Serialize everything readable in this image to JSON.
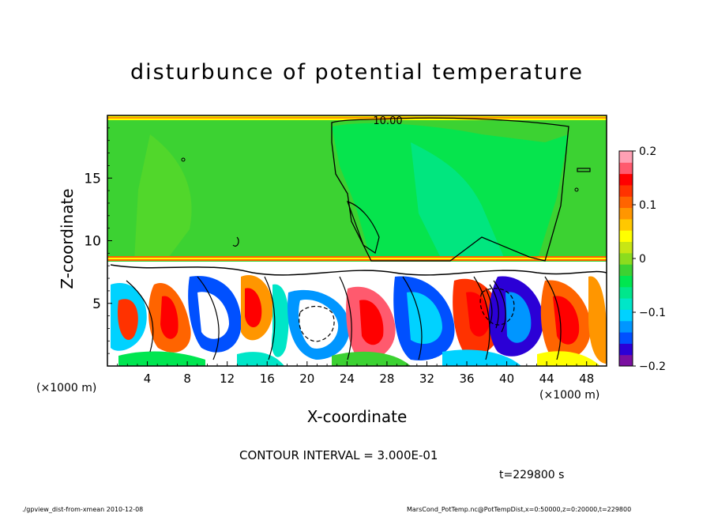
{
  "chart_data": {
    "type": "heatmap",
    "title": "disturbunce of potential temperature",
    "xlabel": "X-coordinate",
    "ylabel": "Z-coordinate",
    "x_unit": "(×1000 m)",
    "y_unit": "(×1000 m)",
    "xlim": [
      0,
      50
    ],
    "ylim": [
      0,
      20
    ],
    "x_ticks": [
      "4",
      "8",
      "12",
      "16",
      "20",
      "24",
      "28",
      "32",
      "36",
      "40",
      "44",
      "48"
    ],
    "y_ticks": [
      "5",
      "10",
      "15"
    ],
    "colorbar": {
      "range": [
        -0.2,
        0.2
      ],
      "tick_labels": [
        "0.2",
        "0.1",
        "0",
        "−0.1",
        "−0.2"
      ],
      "tick_values": [
        0.2,
        0.1,
        0,
        -0.1,
        -0.2
      ],
      "colors": [
        "#7a0fa0",
        "#2b00d6",
        "#0050ff",
        "#0096ff",
        "#00d2ff",
        "#00e6c8",
        "#00e68c",
        "#00e650",
        "#3cd232",
        "#8cdc1e",
        "#c8e614",
        "#ffff00",
        "#ffc800",
        "#ff9600",
        "#ff6400",
        "#ff3200",
        "#ff0000",
        "#ff5a6e",
        "#ffa0b4"
      ]
    },
    "contour_label": "10.00",
    "contour_interval_text": "CONTOUR INTERVAL = 3.000E-01",
    "time_text": "t=229800 s",
    "upper_layer_value_note": "≈ 0 to −0.05 above z≈8.5"
  },
  "footer": {
    "left": "./gpview_dist-from-xmean  2010-12-08",
    "right": "MarsCond_PotTemp.nc@PotTempDist,x=0:50000,z=0:20000,t=229800"
  }
}
